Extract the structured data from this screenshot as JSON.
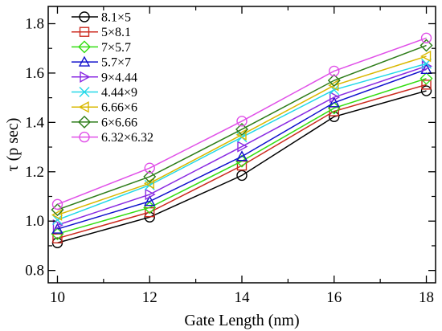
{
  "chart_data": {
    "type": "line",
    "xlabel": "Gate Length (nm)",
    "ylabel": "τ  (p sec)",
    "xlim": [
      9.8,
      18.2
    ],
    "ylim": [
      0.75,
      1.87
    ],
    "x": [
      10,
      12,
      14,
      16,
      18
    ],
    "xticks": [
      "10",
      "12",
      "14",
      "16",
      "18"
    ],
    "yticks": [
      "0.8",
      "1.0",
      "1.2",
      "1.4",
      "1.6",
      "1.8"
    ],
    "ytick_values": [
      0.8,
      1.0,
      1.2,
      1.4,
      1.6,
      1.8
    ],
    "grid": false,
    "legend_position": "top-left",
    "series": [
      {
        "name": "8.1×5",
        "color": "#000000",
        "marker": "circle",
        "values": [
          0.912,
          1.016,
          1.185,
          1.423,
          1.528
        ]
      },
      {
        "name": "5×8.1",
        "color": "#cc2a1f",
        "marker": "square",
        "values": [
          0.93,
          1.036,
          1.225,
          1.445,
          1.553
        ]
      },
      {
        "name": "7×5.7",
        "color": "#33dd11",
        "marker": "diamond",
        "values": [
          0.948,
          1.055,
          1.243,
          1.458,
          1.578
        ]
      },
      {
        "name": "5.7×7",
        "color": "#1010cc",
        "marker": "triangle-up",
        "values": [
          0.968,
          1.08,
          1.262,
          1.48,
          1.615
        ]
      },
      {
        "name": "9×4.44",
        "color": "#8a2be2",
        "marker": "triangle-right",
        "values": [
          0.984,
          1.108,
          1.302,
          1.502,
          1.628
        ]
      },
      {
        "name": "4.44×9",
        "color": "#22d8e8",
        "marker": "x",
        "values": [
          1.005,
          1.146,
          1.34,
          1.532,
          1.638
        ]
      },
      {
        "name": "6.66×6",
        "color": "#d9b800",
        "marker": "triangle-left",
        "values": [
          1.025,
          1.153,
          1.35,
          1.55,
          1.668
        ]
      },
      {
        "name": "6×6.66",
        "color": "#2e7d1a",
        "marker": "diamond",
        "values": [
          1.046,
          1.18,
          1.372,
          1.57,
          1.712
        ]
      },
      {
        "name": "6.32×6.32",
        "color": "#e050e8",
        "marker": "circle",
        "values": [
          1.068,
          1.215,
          1.405,
          1.608,
          1.742
        ]
      }
    ]
  }
}
